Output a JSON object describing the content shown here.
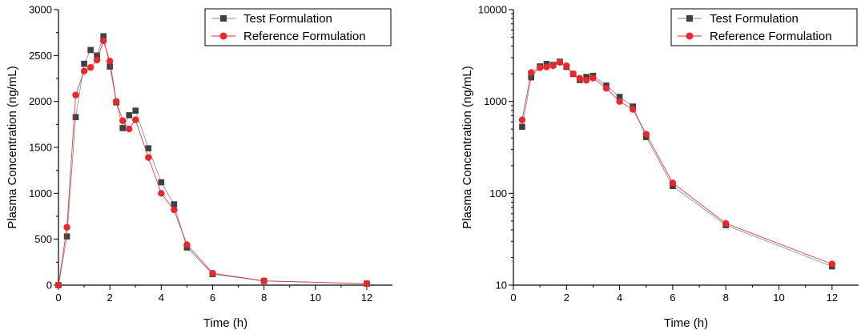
{
  "chart_data": [
    {
      "type": "line",
      "scale": "linear",
      "xlabel": "Time (h)",
      "ylabel": "Plasma Concentration (ng/mL)",
      "xlim": [
        0,
        13
      ],
      "ylim": [
        0,
        3000
      ],
      "xticks": [
        0,
        2,
        4,
        6,
        8,
        10,
        12
      ],
      "yticks": [
        0,
        500,
        1000,
        1500,
        2000,
        2500,
        3000
      ],
      "xtick_labels": [
        "0",
        "2",
        "4",
        "6",
        "8",
        "10",
        "12"
      ],
      "ytick_labels": [
        "0",
        "500",
        "1000",
        "1500",
        "2000",
        "2500",
        "3000"
      ],
      "legend_position": "top-right",
      "x": [
        0,
        0.33,
        0.67,
        1.0,
        1.25,
        1.5,
        1.75,
        2.0,
        2.25,
        2.5,
        2.75,
        3.0,
        3.5,
        4.0,
        4.5,
        5.0,
        6.0,
        8.0,
        12.0
      ],
      "series": [
        {
          "name": "Test Formulation",
          "color": "#404040",
          "marker": "square",
          "values": [
            0,
            530,
            1830,
            2410,
            2560,
            2500,
            2710,
            2380,
            1990,
            1710,
            1850,
            1900,
            1490,
            1120,
            880,
            410,
            120,
            45,
            16
          ]
        },
        {
          "name": "Reference Formulation",
          "color": "#e8282b",
          "marker": "circle",
          "values": [
            0,
            630,
            2070,
            2330,
            2370,
            2450,
            2660,
            2440,
            2000,
            1790,
            1700,
            1800,
            1390,
            1000,
            820,
            440,
            130,
            47,
            17
          ]
        }
      ]
    },
    {
      "type": "line",
      "scale": "log",
      "xlabel": "Time (h)",
      "ylabel": "Plasma Concentration (ng/mL)",
      "xlim": [
        0,
        13
      ],
      "ylim": [
        10,
        10000
      ],
      "xticks": [
        0,
        2,
        4,
        6,
        8,
        10,
        12
      ],
      "yticks": [
        10,
        100,
        1000,
        10000
      ],
      "xtick_labels": [
        "0",
        "2",
        "4",
        "6",
        "8",
        "10",
        "12"
      ],
      "ytick_labels": [
        "10",
        "100",
        "1000",
        "10000"
      ],
      "legend_position": "top-right",
      "x": [
        0.33,
        0.67,
        1.0,
        1.25,
        1.5,
        1.75,
        2.0,
        2.25,
        2.5,
        2.75,
        3.0,
        3.5,
        4.0,
        4.5,
        5.0,
        6.0,
        8.0,
        12.0
      ],
      "series": [
        {
          "name": "Test Formulation",
          "color": "#404040",
          "marker": "square",
          "values": [
            530,
            1830,
            2410,
            2560,
            2500,
            2710,
            2380,
            1990,
            1710,
            1850,
            1900,
            1490,
            1120,
            880,
            410,
            120,
            45,
            16
          ]
        },
        {
          "name": "Reference Formulation",
          "color": "#e8282b",
          "marker": "circle",
          "values": [
            630,
            2070,
            2330,
            2370,
            2450,
            2660,
            2440,
            2000,
            1790,
            1700,
            1800,
            1390,
            1000,
            820,
            440,
            130,
            47,
            17
          ]
        }
      ]
    }
  ]
}
